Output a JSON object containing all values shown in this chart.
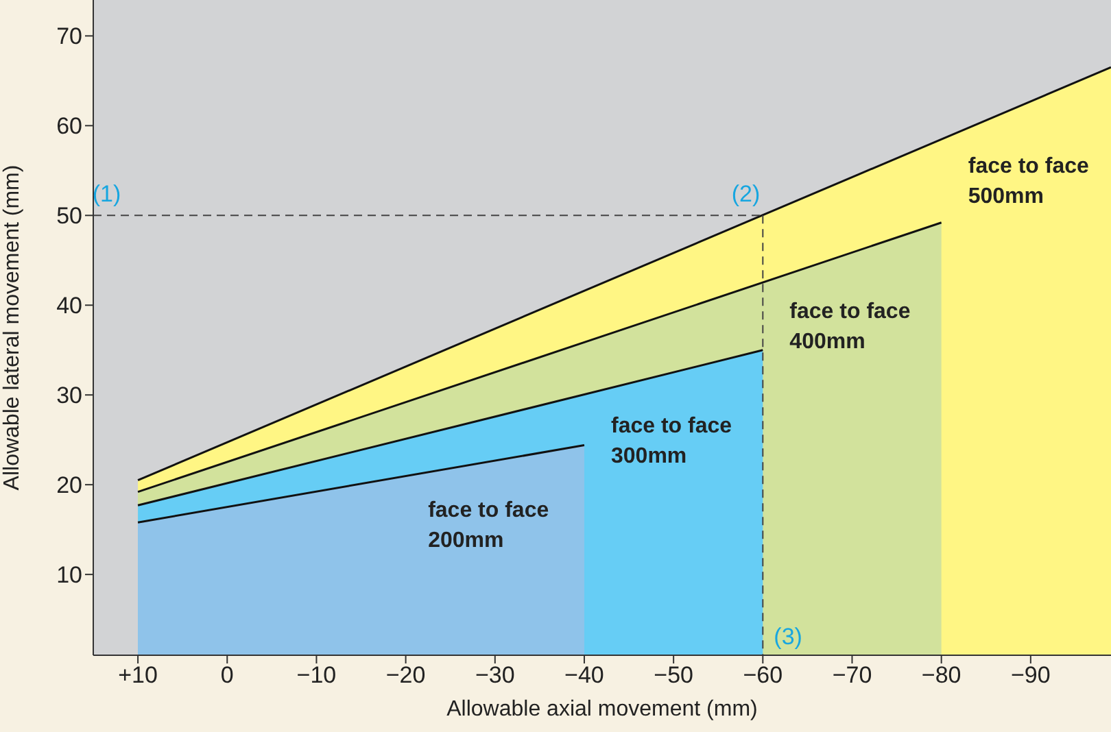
{
  "chart_data": {
    "type": "area",
    "xlabel": "Allowable axial movement (mm)",
    "ylabel": "Allowable lateral movement (mm)",
    "xlim": [
      15,
      -99
    ],
    "xticks": [
      {
        "value": 10,
        "label": "+10"
      },
      0,
      {
        "value": -10,
        "label": "−10"
      },
      {
        "value": -20,
        "label": "−20"
      },
      {
        "value": -30,
        "label": "−30"
      },
      {
        "value": -40,
        "label": "−40"
      },
      {
        "value": -50,
        "label": "−50"
      },
      {
        "value": -60,
        "label": "−60"
      },
      {
        "value": -70,
        "label": "−70"
      },
      {
        "value": -80,
        "label": "−80"
      },
      {
        "value": -90,
        "label": "−90"
      }
    ],
    "ylim": [
      1,
      74
    ],
    "yticks": [
      10,
      20,
      30,
      40,
      50,
      60,
      70
    ],
    "series": [
      {
        "name": "face to face 200mm",
        "color": "#8fc3ea",
        "x": [
          10,
          -40
        ],
        "values": [
          15.8,
          24.4
        ]
      },
      {
        "name": "face to face 300mm",
        "color": "#66cdf5",
        "x": [
          10,
          -60
        ],
        "values": [
          17.7,
          35
        ]
      },
      {
        "name": "face to face 400mm",
        "color": "#d2e29c",
        "x": [
          10,
          -80
        ],
        "values": [
          19.2,
          49.2
        ]
      },
      {
        "name": "face to face 500mm",
        "color": "#fff684",
        "x": [
          10,
          -99
        ],
        "values": [
          20.5,
          66.5
        ]
      }
    ],
    "ref_lines": [
      {
        "axis": "y",
        "value": 50,
        "color": "#444444",
        "line_style": "dashed"
      },
      {
        "axis": "x",
        "value": -60,
        "color": "#444444",
        "line_style": "dashed"
      }
    ],
    "annotations": [
      "(1)",
      "(2)",
      "(3)"
    ],
    "legend": false
  }
}
